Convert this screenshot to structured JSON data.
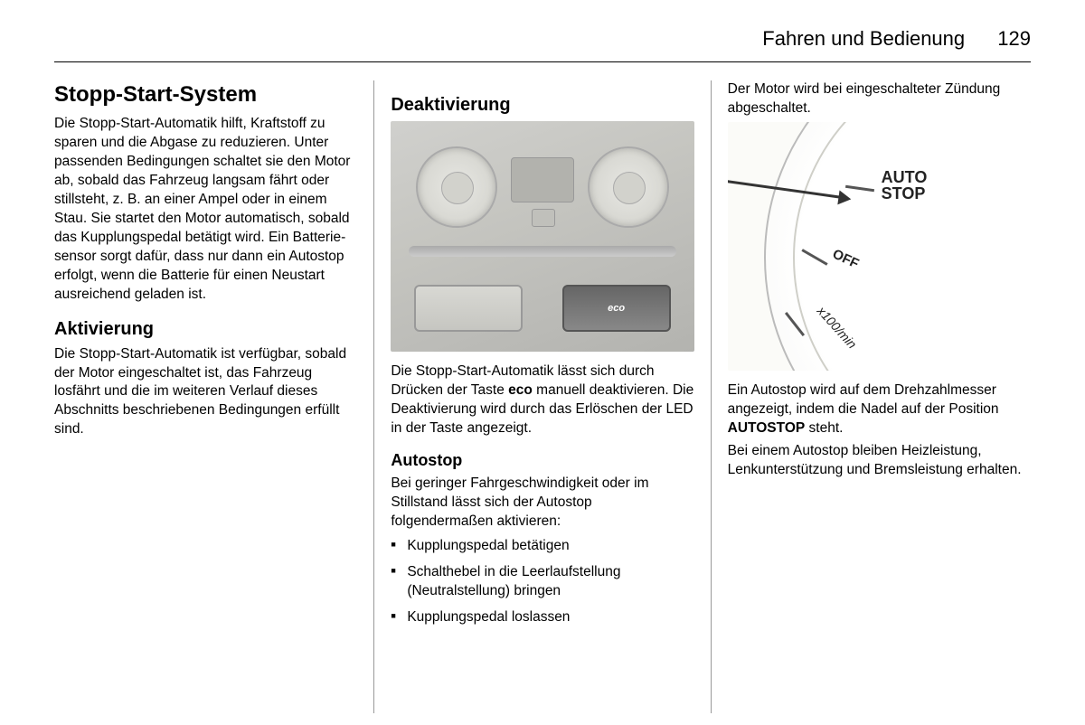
{
  "header": {
    "title": "Fahren und Bedienung",
    "page": "129"
  },
  "col1": {
    "h1": "Stopp-Start-System",
    "p1": "Die Stopp-Start-Automatik hilft, Kraft­stoff zu sparen und die Abgase zu re­duzieren. Unter passenden Bedin­gungen schaltet sie den Motor ab, so­bald das Fahrzeug langsam fährt oder stillsteht, z. B. an einer Ampel oder in einem Stau. Sie startet den Motor automatisch, sobald das Kupp­lungspedal betätigt wird. Ein Batterie­sensor sorgt dafür, dass nur dann ein Autostop erfolgt, wenn die Batterie für einen Neustart ausreichend geladen ist.",
    "h2": "Aktivierung",
    "p2": "Die Stopp-Start-Automatik ist verfüg­bar, sobald der Motor eingeschaltet ist, das Fahrzeug losfährt und die im weiteren Verlauf dieses Abschnitts beschriebenen Bedingungen erfüllt sind."
  },
  "col2": {
    "h2a": "Deaktivierung",
    "eco_label": "eco",
    "p1a": "Die Stopp-Start-Automatik lässt sich durch Drücken der Taste ",
    "p1b": "eco",
    "p1c": " manuell deaktivieren. Die Deaktivierung wird durch das Erlöschen der LED in der Taste angezeigt.",
    "h2b": "Autostop",
    "p2": "Bei geringer Fahrgeschwindigkeit oder im Stillstand lässt sich der Auto­stop folgendermaßen aktivieren:",
    "li1": "Kupplungspedal betätigen",
    "li2": "Schalthebel in die Leerlaufstellung (Neutralstellung) bringen",
    "li3": "Kupplungspedal loslassen"
  },
  "col3": {
    "p1": "Der Motor wird bei eingeschalteter Zündung abgeschaltet.",
    "tacho": {
      "auto": "AUTO",
      "stop": "STOP",
      "off": "OFF",
      "x100": "x100/min"
    },
    "p2a": "Ein Autostop wird auf dem Drehzahl­messer angezeigt, indem die Nadel auf der Position ",
    "p2b": "AUTOSTOP",
    "p2c": " steht.",
    "p3": "Bei einem Autostop bleiben Heizleis­tung, Lenkunterstützung und Brems­leistung erhalten."
  }
}
